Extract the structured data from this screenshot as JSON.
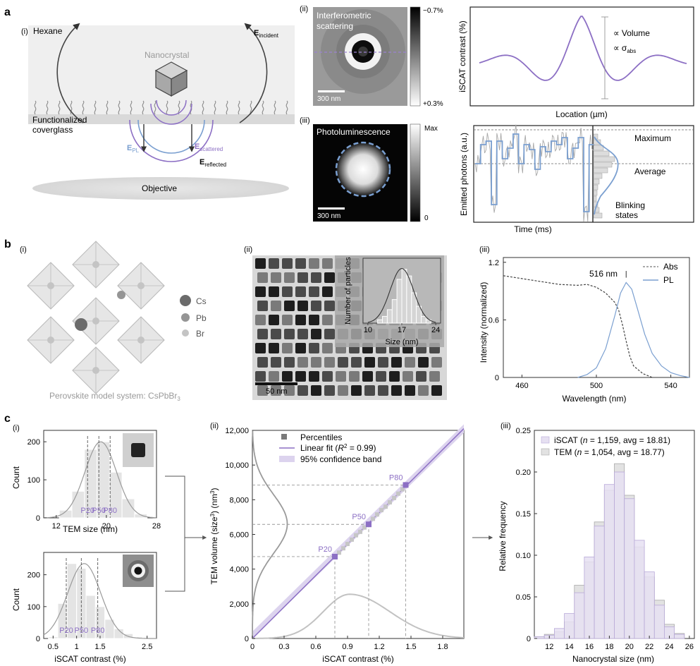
{
  "panel_letters": {
    "a": "a",
    "b": "b",
    "c": "c"
  },
  "a": {
    "i": {
      "tag": "(i)",
      "hexane": "Hexane",
      "nanocrystal": "Nanocrystal",
      "coverglass_1": "Functionalized",
      "coverglass_2": "coverglass",
      "objective": "Objective",
      "e_incident": "E",
      "e_incident_sub": "incident",
      "e_pl": "E",
      "e_pl_sub": "PL",
      "e_scattered": "E",
      "e_scattered_sub": "scattered",
      "e_reflected": "E",
      "e_reflected_sub": "reflected"
    },
    "ii": {
      "tag": "(ii)",
      "title_1": "Interferometric",
      "title_2": "scattering",
      "scale": "300 nm",
      "cbar_top": "−0.7%",
      "cbar_bottom": "+0.3%"
    },
    "iii": {
      "tag": "(iii)",
      "title": "Photoluminescence",
      "scale": "300 nm",
      "cbar_top": "Max",
      "cbar_bottom": "0"
    },
    "iscat_plot": {
      "ylabel": "iSCAT contrast (%)",
      "xlabel": "Location (µm)",
      "ann_volume": "∝ Volume",
      "ann_sigma": "∝ σ",
      "ann_sigma_sub": "abs"
    },
    "blink_plot": {
      "ylabel": "Emitted photons (a.u.)",
      "xlabel": "Time (ms)",
      "maximum": "Maximum",
      "average": "Average",
      "blinking_1": "Blinking",
      "blinking_2": "states"
    }
  },
  "b": {
    "i": {
      "tag": "(i)",
      "caption": "Perovskite model system: CsPbBr",
      "caption_sub": "3",
      "legend": [
        {
          "label": "Cs",
          "color": "#6b6b6b"
        },
        {
          "label": "Pb",
          "color": "#959595"
        },
        {
          "label": "Br",
          "color": "#c4c4c4"
        }
      ]
    },
    "ii": {
      "tag": "(ii)",
      "scale": "50 nm",
      "inset_chart": {
        "type": "bar",
        "xlabel": "Size (nm)",
        "ylabel": "Number of particles",
        "xticks": [
          10,
          17,
          24
        ],
        "bins": [
          10,
          11,
          12,
          13,
          14,
          15,
          16,
          17,
          18,
          19,
          20,
          21,
          22,
          23
        ],
        "values": [
          0,
          0,
          1,
          2,
          4,
          7,
          13,
          16,
          14,
          9,
          5,
          2,
          1,
          0
        ]
      }
    },
    "iii": {
      "tag": "(iii)",
      "chart_data": {
        "type": "line",
        "xlabel": "Wavelength (nm)",
        "ylabel": "Intensity (normalized)",
        "xlim": [
          450,
          550
        ],
        "ylim": [
          0,
          1.25
        ],
        "xticks": [
          460,
          500,
          540
        ],
        "yticks": [
          0,
          0.6,
          1.2
        ],
        "annotation": "516 nm",
        "series": [
          {
            "name": "Abs",
            "x": [
              450,
              460,
              470,
              480,
              490,
              495,
              500,
              505,
              510,
              512,
              514,
              516,
              518,
              520,
              525,
              530
            ],
            "y": [
              1.06,
              1.03,
              1.0,
              0.97,
              0.96,
              0.97,
              0.94,
              0.88,
              0.78,
              0.7,
              0.55,
              0.38,
              0.22,
              0.12,
              0.04,
              0.0
            ]
          },
          {
            "name": "PL",
            "x": [
              490,
              495,
              500,
              505,
              510,
              513,
              516,
              519,
              522,
              526,
              530,
              535,
              540,
              545,
              550
            ],
            "y": [
              0.0,
              0.03,
              0.1,
              0.3,
              0.65,
              0.88,
              0.99,
              0.92,
              0.72,
              0.45,
              0.25,
              0.12,
              0.05,
              0.02,
              0.0
            ]
          }
        ]
      }
    }
  },
  "c": {
    "i": {
      "tag": "(i)",
      "tem_hist": {
        "type": "bar",
        "xlabel": "TEM size (nm)",
        "ylabel": "Count",
        "xlim": [
          10,
          28
        ],
        "ylim": [
          0,
          230
        ],
        "xticks": [
          12,
          20,
          28
        ],
        "yticks": [
          0,
          100,
          200
        ],
        "bins": [
          13.5,
          15.5,
          17.5,
          19.5,
          21.5,
          23.5,
          25.5
        ],
        "values": [
          20,
          70,
          180,
          200,
          120,
          50,
          10
        ],
        "percentiles": [
          {
            "label": "P20",
            "x": 17.0
          },
          {
            "label": "P50",
            "x": 18.8
          },
          {
            "label": "P80",
            "x": 20.6
          }
        ]
      },
      "iscat_hist": {
        "type": "bar",
        "xlabel": "iSCAT contrast (%)",
        "ylabel": "Count",
        "xlim": [
          0.3,
          2.7
        ],
        "ylim": [
          0,
          270
        ],
        "xticks": [
          0.5,
          1.0,
          1.5,
          2.5
        ],
        "yticks": [
          0,
          100,
          200
        ],
        "bins": [
          0.5,
          0.7,
          0.9,
          1.1,
          1.3,
          1.5,
          1.7,
          1.9,
          2.1,
          2.3,
          2.5
        ],
        "values": [
          5,
          110,
          235,
          220,
          135,
          100,
          60,
          30,
          15,
          5,
          2
        ],
        "percentiles": [
          {
            "label": "P20",
            "x": 0.78
          },
          {
            "label": "P50",
            "x": 1.1
          },
          {
            "label": "P80",
            "x": 1.45
          }
        ]
      }
    },
    "ii": {
      "tag": "(ii)",
      "chart_data": {
        "type": "scatter",
        "xlabel": "iSCAT contrast (%)",
        "ylabel": "TEM volume (size",
        "ylabel_sup": "3",
        "ylabel_end": ") (nm",
        "ylabel_sup2": "3",
        "ylabel_close": ")",
        "xlim": [
          0,
          2.0
        ],
        "ylim": [
          0,
          12000
        ],
        "xticks": [
          0,
          0.3,
          0.6,
          0.9,
          1.2,
          1.5,
          1.8
        ],
        "yticks": [
          0,
          2000,
          4000,
          6000,
          8000,
          10000,
          12000
        ],
        "ytick_labels": [
          "0",
          "2,000",
          "4,000",
          "6,000",
          "8,000",
          "10,000",
          "12,000"
        ],
        "legend": {
          "percentiles": "Percentiles",
          "fit": "Linear fit (",
          "fit_r": "R",
          "fit_sup": "2",
          "fit_end": " = 0.99)",
          "band": "95% confidence band"
        },
        "fit": {
          "slope": 6050,
          "intercept": 0
        },
        "percentile_points": {
          "x": [
            0.82,
            0.86,
            0.9,
            0.94,
            0.98,
            1.02,
            1.06,
            1.14,
            1.18,
            1.22,
            1.26,
            1.3,
            1.34,
            1.38,
            1.42
          ],
          "y": [
            4950,
            5200,
            5450,
            5700,
            5950,
            6150,
            6400,
            6900,
            7150,
            7400,
            7600,
            7850,
            8100,
            8350,
            8600
          ]
        },
        "highlight": [
          {
            "label": "P20",
            "x": 0.78,
            "y": 4720
          },
          {
            "label": "P50",
            "x": 1.1,
            "y": 6580
          },
          {
            "label": "P80",
            "x": 1.45,
            "y": 8850
          }
        ]
      }
    },
    "iii": {
      "tag": "(iii)",
      "chart_data": {
        "type": "bar",
        "xlabel": "Nanocrystal size (nm)",
        "ylabel": "Relative frequency",
        "xlim": [
          10.5,
          26.5
        ],
        "ylim": [
          0,
          0.25
        ],
        "xticks": [
          12,
          14,
          16,
          18,
          20,
          22,
          24,
          26
        ],
        "yticks": [
          0,
          0.05,
          0.1,
          0.15,
          0.2,
          0.25
        ],
        "ytick_labels": [
          "0",
          "0.05",
          "0.10",
          "0.15",
          "0.20",
          "0.25"
        ],
        "bins": [
          11,
          12,
          13,
          14,
          15,
          16,
          17,
          18,
          19,
          20,
          21,
          22,
          23,
          24,
          25
        ],
        "series": [
          {
            "name": "iSCAT",
            "legend_pre": "iSCAT (",
            "legend_n": "n",
            "legend_post": " = 1,159, avg = 18.81)",
            "color": "#e6e0f2",
            "values": [
              0.002,
              0.004,
              0.012,
              0.03,
              0.055,
              0.098,
              0.135,
              0.185,
              0.2,
              0.168,
              0.118,
              0.08,
              0.04,
              0.014,
              0.005
            ]
          },
          {
            "name": "TEM",
            "legend_pre": "TEM (",
            "legend_n": "n",
            "legend_post": " = 1,054, avg = 18.77)",
            "color": "#e2e2e2",
            "values": [
              0.002,
              0.005,
              0.008,
              0.02,
              0.064,
              0.092,
              0.14,
              0.178,
              0.21,
              0.172,
              0.11,
              0.074,
              0.046,
              0.017,
              0.006
            ]
          }
        ]
      }
    }
  },
  "colors": {
    "purple": "#8c6fc4",
    "blue": "#7a9fd0",
    "gray": "#9a9a9a"
  }
}
